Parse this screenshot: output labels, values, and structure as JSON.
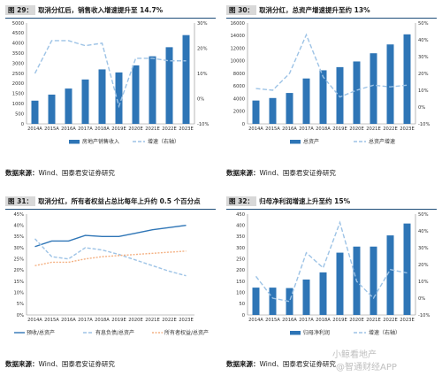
{
  "source_label": "数据来源：",
  "source_text": "Wind、国泰君安证券研究",
  "watermark": {
    "line1": "小鲸看地产",
    "line2": "@智通财经APP"
  },
  "charts": [
    {
      "id": "c29",
      "number": "图 29：",
      "title": "取消分红后，销售收入增速提升至 14.7%",
      "chart_data": {
        "type": "bar+line",
        "categories": [
          "2014A",
          "2015A",
          "2016A",
          "2017A",
          "2018A",
          "2019E",
          "2020E",
          "2021E",
          "2022E",
          "2023E"
        ],
        "left_axis": {
          "min": 0,
          "max": 5000,
          "ticks": [
            "0",
            "500",
            "1000",
            "1500",
            "2000",
            "2500",
            "3000",
            "3500",
            "4000",
            "4500",
            "5000"
          ]
        },
        "right_axis": {
          "min": -10,
          "max": 30,
          "ticks": [
            "-10%",
            "0%",
            "10%",
            "20%",
            "30%"
          ]
        },
        "bar_series": {
          "name": "房地产销售收入",
          "color": "#2e75b6",
          "values": [
            1150,
            1450,
            1750,
            2200,
            2700,
            2550,
            2900,
            3350,
            3800,
            4400
          ]
        },
        "line_series": {
          "name": "增速（右轴）",
          "color": "#9dc3e6",
          "values": [
            10,
            23,
            23,
            21,
            22,
            -3,
            16,
            16,
            15,
            15
          ]
        }
      }
    },
    {
      "id": "c30",
      "number": "图 30：",
      "title": "取消分红，总资产增速提升至约 13%",
      "chart_data": {
        "type": "bar+line",
        "categories": [
          "2014A",
          "2015A",
          "2016A",
          "2017A",
          "2018A",
          "2019E",
          "2020E",
          "2021E",
          "2022E",
          "2023E"
        ],
        "left_axis": {
          "min": 0,
          "max": 16000,
          "ticks": [
            "0",
            "2000",
            "4000",
            "6000",
            "8000",
            "10000",
            "12000",
            "14000",
            "16000"
          ]
        },
        "right_axis": {
          "min": -10,
          "max": 50,
          "ticks": [
            "-10%",
            "0%",
            "10%",
            "20%",
            "30%",
            "40%",
            "50%"
          ]
        },
        "bar_series": {
          "name": "总资产",
          "color": "#2e75b6",
          "values": [
            3700,
            4100,
            4900,
            7200,
            8500,
            9000,
            9900,
            11200,
            12600,
            14200
          ]
        },
        "line_series": {
          "name": "总资产增速",
          "color": "#9dc3e6",
          "values": [
            11,
            10,
            20,
            43,
            18,
            6,
            10,
            13,
            12,
            13
          ]
        }
      }
    },
    {
      "id": "c31",
      "number": "图 31：",
      "title": "取消分红，所有者权益占总比每年上升约 0.5 个百分点",
      "chart_data": {
        "type": "line",
        "categories": [
          "2014A",
          "2015A",
          "2016A",
          "2017A",
          "2018A",
          "2019E",
          "2020E",
          "2021E",
          "2022E",
          "2023E"
        ],
        "y_axis": {
          "min": 0,
          "max": 45,
          "ticks": [
            "0%",
            "5%",
            "10%",
            "15%",
            "20%",
            "25%",
            "30%",
            "35%",
            "40%",
            "45%"
          ]
        },
        "series": [
          {
            "name": "预收/总资产",
            "color": "#2e75b6",
            "dash": "",
            "values": [
              30.5,
              33,
              33,
              35.5,
              35,
              35,
              36.5,
              38,
              39,
              40
            ]
          },
          {
            "name": "有息负债/总资产",
            "color": "#9dc3e6",
            "dash": "4,2",
            "values": [
              34,
              26,
              25,
              30,
              29,
              27,
              24.5,
              22,
              19.5,
              17.5
            ]
          },
          {
            "name": "所有者权益/总资产",
            "color": "#f4b183",
            "dash": "2,1.5",
            "values": [
              22,
              23.5,
              23.5,
              25,
              26,
              26.5,
              27,
              27.5,
              28,
              28.5
            ]
          }
        ]
      }
    },
    {
      "id": "c32",
      "number": "图 32：",
      "title": "归母净利润增速上升至约 15%",
      "chart_data": {
        "type": "bar+line",
        "categories": [
          "2014A",
          "2015A",
          "2016A",
          "2017A",
          "2018A",
          "2019E",
          "2020E",
          "2021E",
          "2022E",
          "2023E"
        ],
        "left_axis": {
          "min": 0,
          "max": 450,
          "ticks": [
            "0",
            "50",
            "100",
            "150",
            "200",
            "250",
            "300",
            "350",
            "400",
            "450"
          ]
        },
        "right_axis": {
          "min": -10,
          "max": 50,
          "ticks": [
            "-10%",
            "0%",
            "10%",
            "20%",
            "30%",
            "40%",
            "50%"
          ]
        },
        "bar_series": {
          "name": "归母净利润",
          "color": "#2e75b6",
          "values": [
            122,
            122,
            120,
            158,
            190,
            278,
            305,
            305,
            355,
            408
          ]
        },
        "line_series": {
          "name": "增速（右轴）",
          "color": "#9dc3e6",
          "values": [
            13,
            0,
            -2,
            27,
            18,
            45,
            10,
            0,
            17,
            15
          ]
        }
      }
    }
  ]
}
